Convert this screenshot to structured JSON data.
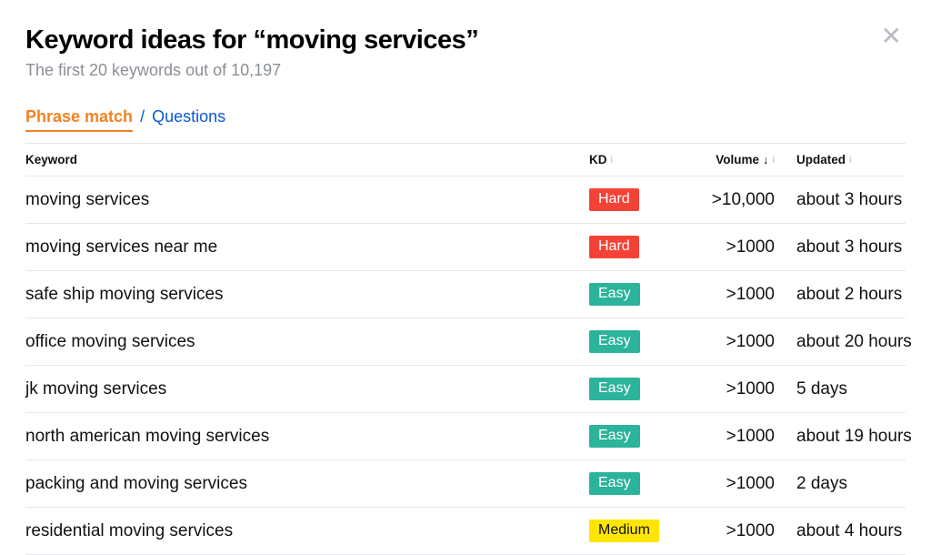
{
  "header": {
    "title": "Keyword ideas for “moving services”",
    "subtitle": "The first 20 keywords out of 10,197"
  },
  "tabs": {
    "active": "Phrase match",
    "separator": "/",
    "other": "Questions"
  },
  "columns": {
    "keyword": "Keyword",
    "kd": "KD",
    "volume": "Volume",
    "updated": "Updated"
  },
  "sort_indicator": "↓",
  "info_glyph": "i",
  "kd_styles": {
    "Hard": {
      "bg": "#f44336",
      "fg": "#ffffff"
    },
    "Easy": {
      "bg": "#2bb39b",
      "fg": "#ffffff"
    },
    "Medium": {
      "bg": "#ffe600",
      "fg": "#111111"
    }
  },
  "rows": [
    {
      "keyword": "moving services",
      "kd": "Hard",
      "volume": ">10,000",
      "updated": "about 3 hours"
    },
    {
      "keyword": "moving services near me",
      "kd": "Hard",
      "volume": ">1000",
      "updated": "about 3 hours"
    },
    {
      "keyword": "safe ship moving services",
      "kd": "Easy",
      "volume": ">1000",
      "updated": "about 2 hours"
    },
    {
      "keyword": "office moving services",
      "kd": "Easy",
      "volume": ">1000",
      "updated": "about 20 hours"
    },
    {
      "keyword": "jk moving services",
      "kd": "Easy",
      "volume": ">1000",
      "updated": "5 days"
    },
    {
      "keyword": "north american moving services",
      "kd": "Easy",
      "volume": ">1000",
      "updated": "about 19 hours"
    },
    {
      "keyword": "packing and moving services",
      "kd": "Easy",
      "volume": ">1000",
      "updated": "2 days"
    },
    {
      "keyword": "residential moving services",
      "kd": "Medium",
      "volume": ">1000",
      "updated": "about 4 hours"
    }
  ]
}
